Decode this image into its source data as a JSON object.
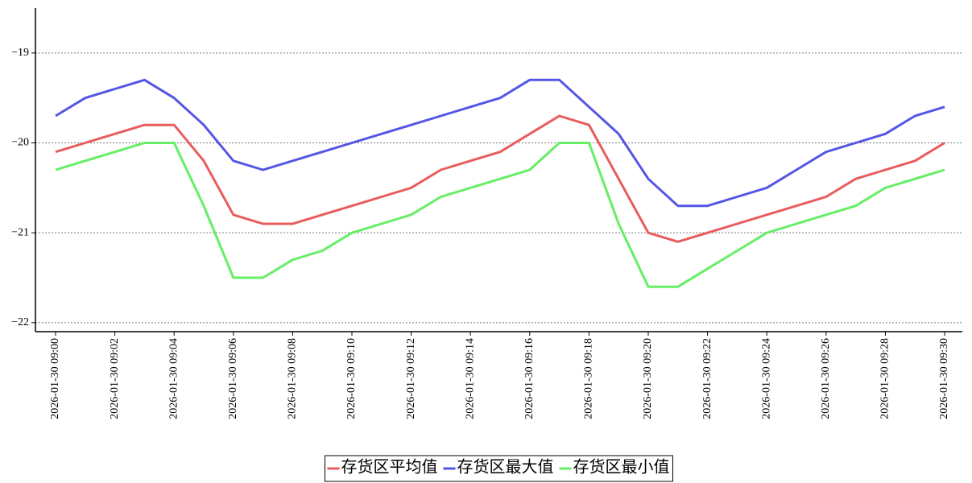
{
  "chart_data": {
    "type": "line",
    "categories": [
      "2026-01-30 09:00",
      null,
      "2026-01-30 09:02",
      null,
      "2026-01-30 09:04",
      null,
      "2026-01-30 09:06",
      null,
      "2026-01-30 09:08",
      null,
      "2026-01-30 09:10",
      null,
      "2026-01-30 09:12",
      null,
      "2026-01-30 09:14",
      null,
      "2026-01-30 09:16",
      null,
      "2026-01-30 09:18",
      null,
      "2026-01-30 09:20",
      null,
      "2026-01-30 09:22",
      null,
      "2026-01-30 09:24",
      null,
      "2026-01-30 09:26",
      null,
      "2026-01-30 09:28",
      null,
      "2026-01-30 09:30"
    ],
    "series": [
      {
        "name": "存货区平均值",
        "color": "#e85c5c",
        "values": [
          -20.1,
          -20.0,
          -19.9,
          -19.8,
          -19.8,
          -20.2,
          -20.8,
          -20.9,
          -20.9,
          -20.8,
          -20.7,
          -20.6,
          -20.5,
          -20.3,
          -20.2,
          -20.1,
          -19.9,
          -19.7,
          -19.8,
          -20.4,
          -21.0,
          -21.1,
          -21.0,
          -20.9,
          -20.8,
          -20.7,
          -20.6,
          -20.4,
          -20.3,
          -20.2,
          -20.0
        ]
      },
      {
        "name": "存货区最大值",
        "color": "#5555e6",
        "values": [
          -19.7,
          -19.5,
          -19.4,
          -19.3,
          -19.5,
          -19.8,
          -20.2,
          -20.3,
          -20.2,
          -20.1,
          -20.0,
          -19.9,
          -19.8,
          -19.7,
          -19.6,
          -19.5,
          -19.3,
          -19.3,
          -19.6,
          -19.9,
          -20.4,
          -20.7,
          -20.7,
          -20.6,
          -20.5,
          -20.3,
          -20.1,
          -20.0,
          -19.9,
          -19.7,
          -19.6
        ]
      },
      {
        "name": "存货区最小值",
        "color": "#66ee66",
        "values": [
          -20.3,
          -20.2,
          -20.1,
          -20.0,
          -20.0,
          -20.7,
          -21.5,
          -21.5,
          -21.3,
          -21.2,
          -21.0,
          -20.9,
          -20.8,
          -20.6,
          -20.5,
          -20.4,
          -20.3,
          -20.0,
          -20.0,
          -20.9,
          -21.6,
          -21.6,
          -21.4,
          -21.2,
          -21.0,
          -20.9,
          -20.8,
          -20.7,
          -20.5,
          -20.4,
          -20.3
        ]
      }
    ],
    "ylim": [
      -22.1,
      -18.5
    ],
    "yticks": [
      {
        "value": -22,
        "label": "−22"
      },
      {
        "value": -21,
        "label": "−21"
      },
      {
        "value": -20,
        "label": "−20"
      },
      {
        "value": -19,
        "label": "−19"
      }
    ],
    "grid": true,
    "legend": "bottom"
  }
}
